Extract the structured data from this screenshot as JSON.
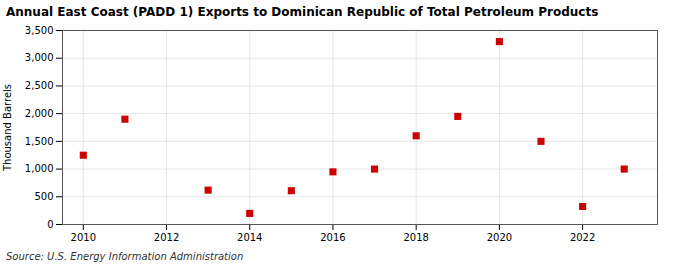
{
  "chart_data": {
    "type": "scatter",
    "title": "Annual East Coast (PADD 1) Exports to Dominican Republic of Total Petroleum Products",
    "ylabel": "Thousand Barrels",
    "source": "Source: U.S. Energy Information Administration",
    "x": [
      2010,
      2011,
      2013,
      2014,
      2015,
      2016,
      2017,
      2018,
      2019,
      2020,
      2021,
      2022,
      2023
    ],
    "values": [
      1250,
      1900,
      620,
      200,
      610,
      950,
      1000,
      1600,
      1950,
      3300,
      1500,
      325,
      1000
    ],
    "color": "#cc0000",
    "marker": "square",
    "xlim": [
      2009.5,
      2023.8
    ],
    "xticks": [
      2010,
      2012,
      2014,
      2016,
      2018,
      2020,
      2022
    ],
    "ylim": [
      0,
      3500
    ],
    "yticks": [
      0,
      500,
      {
        "value": 1000,
        "label": "1,000"
      },
      {
        "value": 1500,
        "label": "1,500"
      },
      {
        "value": 2000,
        "label": "2,000"
      },
      {
        "value": 2500,
        "label": "2,500"
      },
      {
        "value": 3000,
        "label": "3,000"
      },
      {
        "value": 3500,
        "label": "3,500"
      }
    ],
    "grid": true
  }
}
